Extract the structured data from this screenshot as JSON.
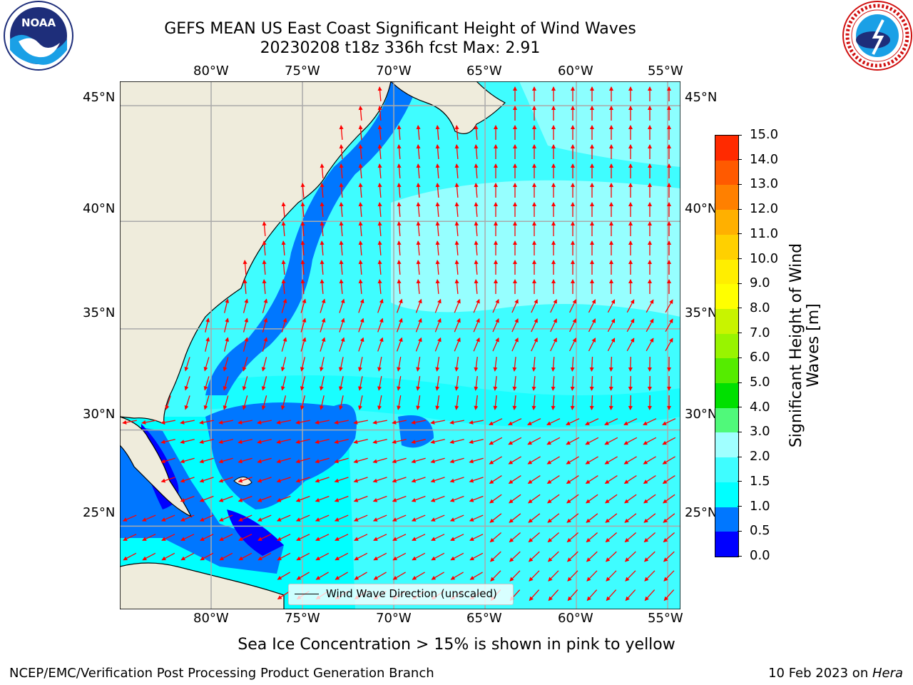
{
  "header": {
    "title_line1": "GEFS MEAN US East Coast Significant Height of Wind Waves",
    "title_line2": "20230208 t18z 336h fcst   Max: 2.91"
  },
  "logos": {
    "left": "noaa-logo",
    "left_text": "NOAA",
    "right": "national-weather-service-logo",
    "right_text": "NATIONAL WEATHER SERVICE"
  },
  "map": {
    "lon_labels": [
      "80°W",
      "75°W",
      "70°W",
      "65°W",
      "60°W",
      "55°W"
    ],
    "lat_labels": [
      "45°N",
      "40°N",
      "35°N",
      "30°N",
      "25°N"
    ],
    "extent": {
      "lon": [
        -85,
        -54.3
      ],
      "lat": [
        20.5,
        46
      ]
    },
    "gridlines": true,
    "land_color": "#efecdc",
    "vector_color": "#ff0000",
    "legend_label": "Wind Wave Direction (unscaled)"
  },
  "colorbar": {
    "label": "Significant Height of Wind Waves [m]",
    "ticks": [
      "0.0",
      "0.5",
      "1.0",
      "1.5",
      "2.0",
      "3.0",
      "4.0",
      "5.0",
      "6.0",
      "7.0",
      "8.0",
      "9.0",
      "10.0",
      "11.0",
      "12.0",
      "13.0",
      "14.0",
      "15.0"
    ],
    "colors": [
      "#0000ff",
      "#0077ff",
      "#00ffff",
      "#3ffdff",
      "#a0ffff",
      "#50f97a",
      "#00e000",
      "#55ec00",
      "#98f400",
      "#c8f400",
      "#ffff00",
      "#ffee00",
      "#ffd000",
      "#ffb000",
      "#ff8000",
      "#ff5a00",
      "#ff2a00"
    ]
  },
  "note": "Sea Ice Concentration > 15% is shown in pink to yellow",
  "footer": {
    "left": "NCEP/EMC/Verification Post Processing Product Generation Branch",
    "right_prefix": "10 Feb 2023 on ",
    "right_machine": "Hera"
  }
}
